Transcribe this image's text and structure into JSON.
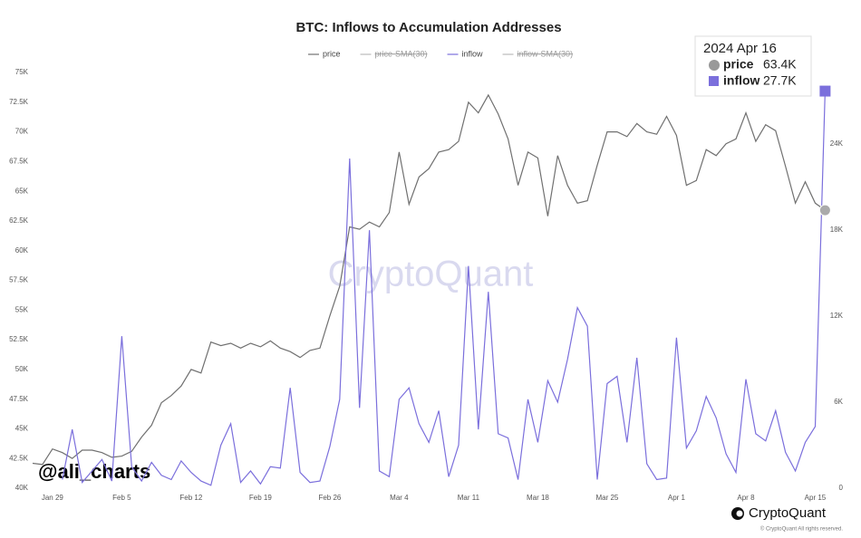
{
  "chart_data": {
    "type": "line",
    "title": "BTC: Inflows to Accumulation Addresses",
    "categories": [
      null,
      null,
      "Jan 29",
      null,
      null,
      null,
      null,
      null,
      null,
      "Feb 5",
      null,
      null,
      null,
      null,
      null,
      null,
      "Feb 12",
      null,
      null,
      null,
      null,
      null,
      null,
      "Feb 19",
      null,
      null,
      null,
      null,
      null,
      null,
      "Feb 26",
      null,
      null,
      null,
      null,
      null,
      null,
      "Mar 4",
      null,
      null,
      null,
      null,
      null,
      null,
      "Mar 11",
      null,
      null,
      null,
      null,
      null,
      null,
      "Mar 18",
      null,
      null,
      null,
      null,
      null,
      null,
      "Mar 25",
      null,
      null,
      null,
      null,
      null,
      null,
      "Apr 1",
      null,
      null,
      null,
      null,
      null,
      null,
      "Apr 8",
      null,
      null,
      null,
      null,
      null,
      null,
      "Apr 15",
      null
    ],
    "series": [
      {
        "name": "price",
        "color": "#707070",
        "axis": "y",
        "values": [
          42100,
          42000,
          43300,
          43000,
          42500,
          43200,
          43200,
          43000,
          42600,
          42700,
          43100,
          44300,
          45300,
          47200,
          47800,
          48600,
          50000,
          49700,
          52300,
          52000,
          52200,
          51800,
          52200,
          51900,
          52400,
          51800,
          51500,
          51000,
          51600,
          51800,
          54500,
          57000,
          62000,
          61800,
          62400,
          62000,
          63200,
          68300,
          63900,
          66200,
          66900,
          68300,
          68500,
          69200,
          72500,
          71600,
          73100,
          71500,
          69400,
          65500,
          68300,
          67800,
          62900,
          68000,
          65500,
          64000,
          64200,
          67200,
          70000,
          70000,
          69600,
          70700,
          70000,
          69800,
          71300,
          69700,
          65500,
          65900,
          68500,
          68000,
          69000,
          69400,
          71600,
          69200,
          70600,
          70100,
          67100,
          64000,
          65800,
          64000,
          63400
        ]
      },
      {
        "name": "inflow",
        "color": "#7b6fdc",
        "axis": "y2",
        "values": [
          null,
          null,
          null,
          600,
          4100,
          400,
          1200,
          2000,
          500,
          10600,
          1500,
          500,
          1800,
          900,
          600,
          1900,
          1100,
          500,
          200,
          3000,
          4500,
          400,
          1200,
          300,
          1500,
          1400,
          7000,
          1100,
          400,
          500,
          2900,
          6200,
          23000,
          5600,
          18000,
          1200,
          800,
          6200,
          7000,
          4500,
          3200,
          5400,
          800,
          3000,
          15500,
          4100,
          13700,
          3800,
          3500,
          600,
          6200,
          3200,
          7500,
          6000,
          9000,
          12600,
          11300,
          600,
          7300,
          7800,
          3200,
          9100,
          1700,
          600,
          700,
          10500,
          2800,
          4000,
          6400,
          4900,
          2400,
          1100,
          7600,
          3800,
          3300,
          5400,
          2500,
          1200,
          3200,
          4300,
          27700
        ]
      }
    ],
    "legend_hidden": [
      "price-SMA(30)",
      "inflow-SMA(30)"
    ],
    "ylim": [
      40000,
      75000
    ],
    "yticks": [
      {
        "value": 40000,
        "label": "40K"
      },
      {
        "value": 42500,
        "label": "42.5K"
      },
      {
        "value": 45000,
        "label": "45K"
      },
      {
        "value": 47500,
        "label": "47.5K"
      },
      {
        "value": 50000,
        "label": "50K"
      },
      {
        "value": 52500,
        "label": "52.5K"
      },
      {
        "value": 55000,
        "label": "55K"
      },
      {
        "value": 57500,
        "label": "57.5K"
      },
      {
        "value": 60000,
        "label": "60K"
      },
      {
        "value": 62500,
        "label": "62.5K"
      },
      {
        "value": 65000,
        "label": "65K"
      },
      {
        "value": 67500,
        "label": "67.5K"
      },
      {
        "value": 70000,
        "label": "70K"
      },
      {
        "value": 72500,
        "label": "72.5K"
      },
      {
        "value": 75000,
        "label": "75K"
      }
    ],
    "y2lim": [
      0,
      29000
    ],
    "y2ticks": [
      0,
      {
        "value": 6000,
        "label": "6K"
      },
      {
        "value": 12000,
        "label": "12K"
      },
      {
        "value": 18000,
        "label": "18K"
      },
      {
        "value": 24000,
        "label": "24K"
      }
    ],
    "tooltip": {
      "title": "2024 Apr 16",
      "labels": [
        "63.4K",
        "27.7K"
      ]
    },
    "annotations": {
      "watermark": "CryptoQuant",
      "handle": "@ali_charts",
      "brand": "CryptoQuant",
      "copyright": "© CryptoQuant All rights reserved."
    }
  }
}
